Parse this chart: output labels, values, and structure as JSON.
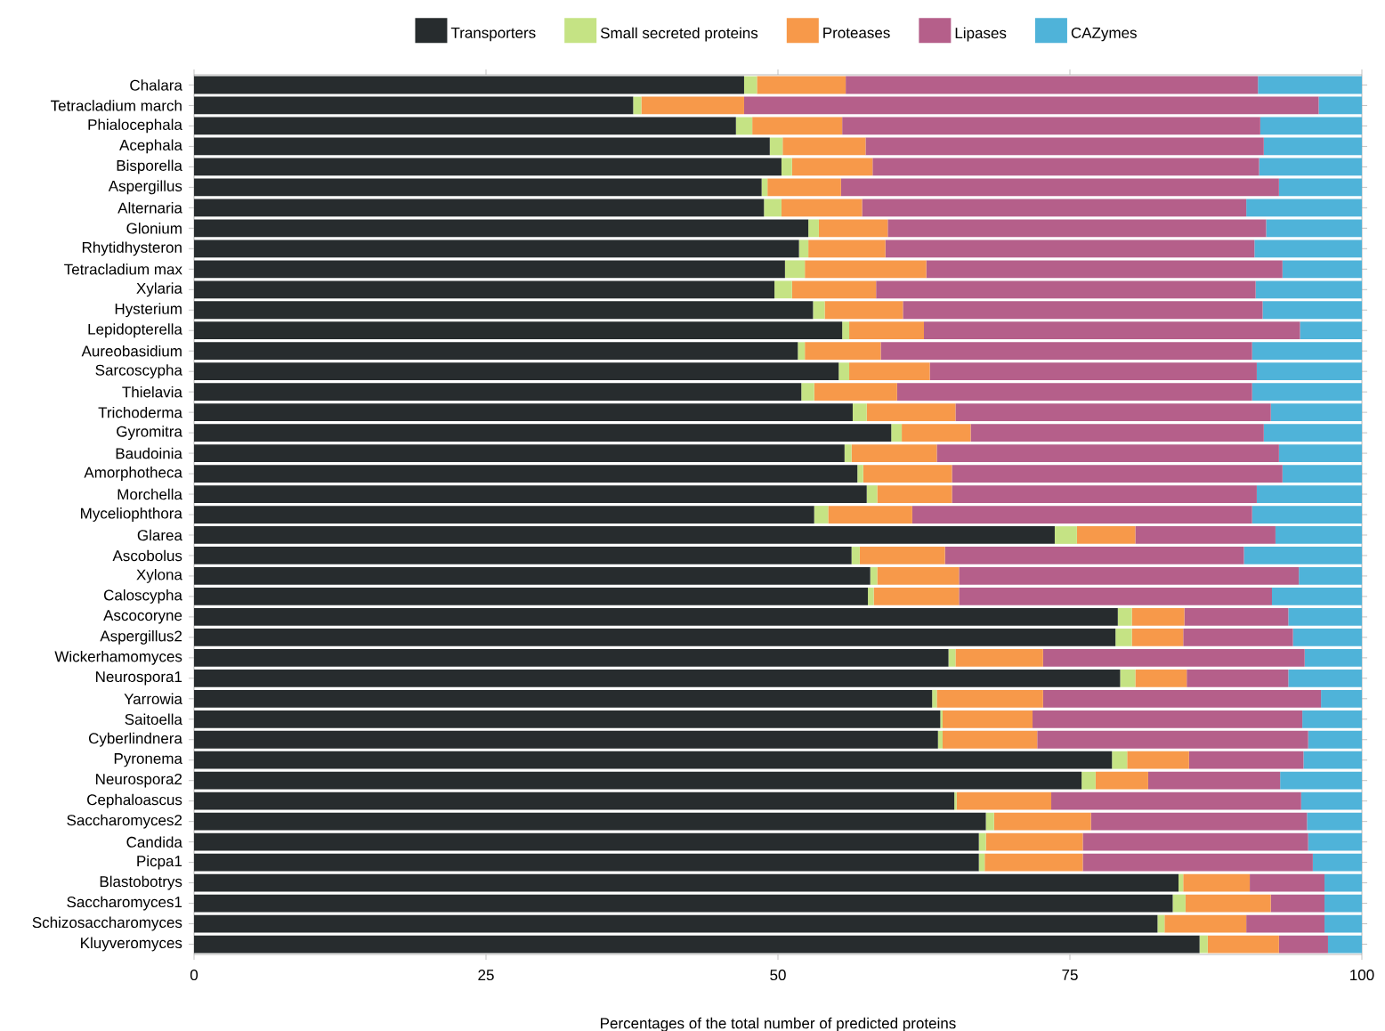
{
  "chart_data": {
    "type": "bar",
    "orientation": "horizontal",
    "stacked": true,
    "xlabel": "Percentages of the total number of predicted proteins",
    "categories": [
      "Chalara",
      "Tetracladium march",
      "Phialocephala",
      "Acephala",
      "Bisporella",
      "Aspergillus",
      "Alternaria",
      "Glonium",
      "Rhytidhysteron",
      "Tetracladium max",
      "Xylaria",
      "Hysterium",
      "Lepidopterella",
      "Aureobasidium",
      "Sarcoscypha",
      "Thielavia",
      "Trichoderma",
      "Gyromitra",
      "Baudoinia",
      "Amorphotheca",
      "Morchella",
      "Myceliophthora",
      "Glarea",
      "Ascobolus",
      "Xylona",
      "Caloscypha",
      "Ascocoryne",
      "Aspergillus2",
      "Wickerhamomyces",
      "Neurospora1",
      "Yarrowia",
      "Saitoella",
      "Cyberlindnera",
      "Pyronema",
      "Neurospora2",
      "Cephaloascus",
      "Saccharomyces2",
      "Candida",
      "Picpa1",
      "Blastobotrys",
      "Saccharomyces1",
      "Schizosaccharomyces",
      "Kluyveromyces"
    ],
    "series": [
      {
        "name": "Transporters",
        "color": "#272c2e",
        "values": [
          47.1,
          37.6,
          46.4,
          49.3,
          50.3,
          48.6,
          48.8,
          52.6,
          51.8,
          50.6,
          49.7,
          53.0,
          55.5,
          51.7,
          55.2,
          52.0,
          56.4,
          59.7,
          55.7,
          56.8,
          57.6,
          53.1,
          73.7,
          56.3,
          57.9,
          57.7,
          79.1,
          78.9,
          64.6,
          79.3,
          63.2,
          63.9,
          63.7,
          78.6,
          76.0,
          65.1,
          67.8,
          67.2,
          67.2,
          84.3,
          83.8,
          82.5,
          86.1
        ]
      },
      {
        "name": "Small secreted proteins",
        "color": "#c5e384",
        "values": [
          1.1,
          0.7,
          1.4,
          1.1,
          0.9,
          0.5,
          1.5,
          0.9,
          0.8,
          1.7,
          1.5,
          1.0,
          0.6,
          0.6,
          0.9,
          1.1,
          1.2,
          0.9,
          0.6,
          0.5,
          0.9,
          1.2,
          1.9,
          0.7,
          0.6,
          0.5,
          1.2,
          1.4,
          0.6,
          1.3,
          0.4,
          0.2,
          0.4,
          1.3,
          1.2,
          0.2,
          0.7,
          0.6,
          0.5,
          0.4,
          1.1,
          0.6,
          0.7
        ]
      },
      {
        "name": "Proteases",
        "color": "#f7994a",
        "values": [
          7.6,
          8.8,
          7.7,
          7.1,
          6.9,
          6.3,
          6.9,
          5.9,
          6.6,
          10.4,
          7.2,
          6.7,
          6.4,
          6.5,
          6.9,
          7.1,
          7.6,
          5.9,
          7.3,
          7.6,
          6.4,
          7.2,
          5.0,
          7.3,
          7.0,
          7.3,
          4.5,
          4.4,
          7.5,
          4.4,
          9.1,
          7.7,
          8.1,
          5.3,
          4.5,
          8.1,
          8.3,
          8.3,
          8.4,
          5.7,
          7.3,
          7.0,
          6.1
        ]
      },
      {
        "name": "Lipases",
        "color": "#b55f8a",
        "values": [
          35.3,
          49.2,
          35.8,
          34.1,
          33.1,
          37.5,
          32.9,
          32.4,
          31.6,
          30.5,
          32.5,
          30.8,
          32.2,
          31.8,
          28.0,
          30.4,
          27.0,
          25.1,
          29.3,
          28.3,
          26.1,
          29.1,
          12.0,
          25.6,
          29.1,
          26.8,
          8.9,
          9.4,
          22.4,
          8.7,
          23.8,
          23.1,
          23.2,
          9.8,
          11.3,
          21.4,
          18.5,
          19.3,
          19.7,
          6.4,
          4.6,
          6.7,
          4.2
        ]
      },
      {
        "name": "CAZymes",
        "color": "#4fb3d9",
        "values": [
          8.9,
          3.7,
          8.7,
          8.4,
          8.8,
          7.1,
          9.9,
          8.2,
          9.2,
          6.8,
          9.1,
          8.5,
          5.3,
          9.4,
          9.0,
          9.4,
          7.8,
          8.4,
          7.1,
          6.8,
          9.0,
          9.4,
          7.4,
          10.1,
          5.4,
          7.7,
          6.3,
          5.9,
          4.9,
          6.3,
          3.5,
          5.1,
          4.6,
          5.0,
          7.0,
          5.2,
          4.7,
          4.6,
          4.2,
          3.2,
          3.2,
          3.2,
          2.9
        ]
      }
    ],
    "xlim": [
      0,
      100
    ],
    "xticks": [
      0,
      25,
      50,
      75,
      100
    ],
    "grid": false,
    "legend": "top"
  }
}
